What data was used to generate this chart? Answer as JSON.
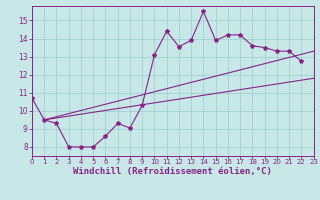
{
  "bg_color": "#c8e8e8",
  "grid_color": "#99cccc",
  "line_color": "#882288",
  "xlabel": "Windchill (Refroidissement éolien,°C)",
  "xlim": [
    0,
    23
  ],
  "ylim": [
    7.5,
    15.8
  ],
  "yticks": [
    8,
    9,
    10,
    11,
    12,
    13,
    14,
    15
  ],
  "xticks": [
    0,
    1,
    2,
    3,
    4,
    5,
    6,
    7,
    8,
    9,
    10,
    11,
    12,
    13,
    14,
    15,
    16,
    17,
    18,
    19,
    20,
    21,
    22,
    23
  ],
  "curve_x": [
    0,
    1,
    2,
    3,
    4,
    5,
    6,
    7,
    8,
    9,
    10,
    11,
    12,
    13,
    14,
    15,
    16,
    17,
    18,
    19,
    20,
    21,
    22
  ],
  "curve_y": [
    10.7,
    9.5,
    9.3,
    8.0,
    8.0,
    8.0,
    8.6,
    9.3,
    9.05,
    10.3,
    13.1,
    14.4,
    13.55,
    13.9,
    15.5,
    13.9,
    14.2,
    14.2,
    13.6,
    13.5,
    13.3,
    13.3,
    12.75
  ],
  "wedge_tip_x": 1,
  "wedge_tip_y": 9.5,
  "wedge_upper_end_x": 23,
  "wedge_upper_end_y": 13.3,
  "wedge_lower_end_x": 23,
  "wedge_lower_end_y": 11.8,
  "xlabel_fontsize": 6.5,
  "xtick_fontsize": 5.0,
  "ytick_fontsize": 5.5
}
